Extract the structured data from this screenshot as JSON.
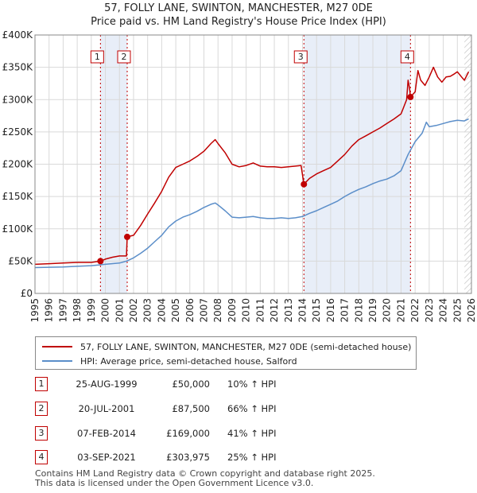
{
  "chart_data": {
    "type": "line",
    "title": "57, FOLLY LANE, SWINTON, MANCHESTER, M27 0DE",
    "subtitle": "Price paid vs. HM Land Registry's House Price Index (HPI)",
    "xlim": [
      1995,
      2026
    ],
    "ylim": [
      0,
      400000
    ],
    "y_ticks": [
      0,
      50000,
      100000,
      150000,
      200000,
      250000,
      300000,
      350000,
      400000
    ],
    "y_tick_labels": [
      "£0",
      "£50K",
      "£100K",
      "£150K",
      "£200K",
      "£250K",
      "£300K",
      "£350K",
      "£400K"
    ],
    "x_ticks": [
      1995,
      1996,
      1997,
      1998,
      1999,
      2000,
      2001,
      2002,
      2003,
      2004,
      2005,
      2006,
      2007,
      2008,
      2009,
      2010,
      2011,
      2012,
      2013,
      2014,
      2015,
      2016,
      2017,
      2018,
      2019,
      2020,
      2021,
      2022,
      2023,
      2024,
      2025,
      2026
    ],
    "x_tick_labels": [
      "1995",
      "1996",
      "1997",
      "1998",
      "1999",
      "2000",
      "2001",
      "2002",
      "2003",
      "2004",
      "2005",
      "2006",
      "2007",
      "2008",
      "2009",
      "2010",
      "2011",
      "2012",
      "2013",
      "2014",
      "2015",
      "2016",
      "2017",
      "2018",
      "2019",
      "2020",
      "2021",
      "2022",
      "2023",
      "2024",
      "2025",
      "2026"
    ],
    "grid": true,
    "series": [
      {
        "name": "57, FOLLY LANE, SWINTON, MANCHESTER, M27 0DE (semi-detached house)",
        "color": "#c00000",
        "points": [
          [
            1995.0,
            45000
          ],
          [
            1996.0,
            46000
          ],
          [
            1997.0,
            47000
          ],
          [
            1998.0,
            48000
          ],
          [
            1999.0,
            48000
          ],
          [
            1999.65,
            50000
          ],
          [
            2000.0,
            53000
          ],
          [
            2000.5,
            56000
          ],
          [
            2001.0,
            58000
          ],
          [
            2001.5,
            58000
          ],
          [
            2001.55,
            87500
          ],
          [
            2002.0,
            90000
          ],
          [
            2002.5,
            105000
          ],
          [
            2003.0,
            123000
          ],
          [
            2003.5,
            140000
          ],
          [
            2004.0,
            158000
          ],
          [
            2004.5,
            180000
          ],
          [
            2005.0,
            195000
          ],
          [
            2005.5,
            200000
          ],
          [
            2006.0,
            205000
          ],
          [
            2006.5,
            212000
          ],
          [
            2007.0,
            220000
          ],
          [
            2007.5,
            232000
          ],
          [
            2007.8,
            238000
          ],
          [
            2008.0,
            232000
          ],
          [
            2008.5,
            218000
          ],
          [
            2009.0,
            200000
          ],
          [
            2009.5,
            196000
          ],
          [
            2010.0,
            198000
          ],
          [
            2010.5,
            202000
          ],
          [
            2011.0,
            197000
          ],
          [
            2011.5,
            196000
          ],
          [
            2012.0,
            196000
          ],
          [
            2012.5,
            195000
          ],
          [
            2013.0,
            196000
          ],
          [
            2013.5,
            197000
          ],
          [
            2013.9,
            198000
          ],
          [
            2014.1,
            169000
          ],
          [
            2014.5,
            178000
          ],
          [
            2015.0,
            185000
          ],
          [
            2015.5,
            190000
          ],
          [
            2016.0,
            195000
          ],
          [
            2016.5,
            205000
          ],
          [
            2017.0,
            215000
          ],
          [
            2017.5,
            228000
          ],
          [
            2018.0,
            238000
          ],
          [
            2018.5,
            244000
          ],
          [
            2019.0,
            250000
          ],
          [
            2019.5,
            256000
          ],
          [
            2020.0,
            263000
          ],
          [
            2020.5,
            270000
          ],
          [
            2021.0,
            278000
          ],
          [
            2021.4,
            300000
          ],
          [
            2021.5,
            330000
          ],
          [
            2021.6,
            318000
          ],
          [
            2021.67,
            303975
          ],
          [
            2022.0,
            312000
          ],
          [
            2022.2,
            345000
          ],
          [
            2022.4,
            330000
          ],
          [
            2022.7,
            322000
          ],
          [
            2023.0,
            335000
          ],
          [
            2023.3,
            350000
          ],
          [
            2023.6,
            335000
          ],
          [
            2023.9,
            327000
          ],
          [
            2024.2,
            335000
          ],
          [
            2024.5,
            336000
          ],
          [
            2024.8,
            340000
          ],
          [
            2025.0,
            343000
          ],
          [
            2025.3,
            335000
          ],
          [
            2025.5,
            330000
          ],
          [
            2025.8,
            343000
          ]
        ],
        "markers": [
          [
            1999.65,
            50000
          ],
          [
            2001.55,
            87500
          ],
          [
            2014.1,
            169000
          ],
          [
            2021.67,
            303975
          ]
        ]
      },
      {
        "name": "HPI: Average price, semi-detached house, Salford",
        "color": "#5b8ec9",
        "points": [
          [
            1995.0,
            40000
          ],
          [
            1996.0,
            40500
          ],
          [
            1997.0,
            41000
          ],
          [
            1998.0,
            42000
          ],
          [
            1999.0,
            43000
          ],
          [
            2000.0,
            45000
          ],
          [
            2001.0,
            47000
          ],
          [
            2001.5,
            50000
          ],
          [
            2002.0,
            55000
          ],
          [
            2002.5,
            62000
          ],
          [
            2003.0,
            70000
          ],
          [
            2003.5,
            80000
          ],
          [
            2004.0,
            90000
          ],
          [
            2004.5,
            103000
          ],
          [
            2005.0,
            112000
          ],
          [
            2005.5,
            118000
          ],
          [
            2006.0,
            122000
          ],
          [
            2006.5,
            127000
          ],
          [
            2007.0,
            133000
          ],
          [
            2007.5,
            138000
          ],
          [
            2007.8,
            140000
          ],
          [
            2008.0,
            137000
          ],
          [
            2008.5,
            128000
          ],
          [
            2009.0,
            118000
          ],
          [
            2009.5,
            117000
          ],
          [
            2010.0,
            118000
          ],
          [
            2010.5,
            119000
          ],
          [
            2011.0,
            117000
          ],
          [
            2011.5,
            116000
          ],
          [
            2012.0,
            116000
          ],
          [
            2012.5,
            117000
          ],
          [
            2013.0,
            116000
          ],
          [
            2013.5,
            117000
          ],
          [
            2014.0,
            119000
          ],
          [
            2014.5,
            124000
          ],
          [
            2015.0,
            128000
          ],
          [
            2015.5,
            133000
          ],
          [
            2016.0,
            138000
          ],
          [
            2016.5,
            143000
          ],
          [
            2017.0,
            150000
          ],
          [
            2017.5,
            156000
          ],
          [
            2018.0,
            161000
          ],
          [
            2018.5,
            165000
          ],
          [
            2019.0,
            170000
          ],
          [
            2019.5,
            174000
          ],
          [
            2020.0,
            177000
          ],
          [
            2020.5,
            182000
          ],
          [
            2021.0,
            190000
          ],
          [
            2021.5,
            215000
          ],
          [
            2022.0,
            235000
          ],
          [
            2022.5,
            248000
          ],
          [
            2022.8,
            265000
          ],
          [
            2023.0,
            258000
          ],
          [
            2023.5,
            260000
          ],
          [
            2024.0,
            263000
          ],
          [
            2024.5,
            266000
          ],
          [
            2025.0,
            268000
          ],
          [
            2025.5,
            267000
          ],
          [
            2025.8,
            270000
          ]
        ]
      }
    ],
    "sale_markers": [
      {
        "label": "1",
        "x": 1999.65
      },
      {
        "label": "2",
        "x": 2001.55
      },
      {
        "label": "3",
        "x": 2014.1
      },
      {
        "label": "4",
        "x": 2021.67
      }
    ],
    "shaded_ranges": [
      [
        1999.65,
        2001.55
      ],
      [
        2014.1,
        2021.67
      ]
    ],
    "forecast_start": 2025.5
  },
  "legend": {
    "property_label": "57, FOLLY LANE, SWINTON, MANCHESTER, M27 0DE (semi-detached house)",
    "hpi_label": "HPI: Average price, semi-detached house, Salford",
    "property_color": "#c00000",
    "hpi_color": "#5b8ec9"
  },
  "transactions": [
    {
      "num": "1",
      "date": "25-AUG-1999",
      "price": "£50,000",
      "hpi": "10% ↑ HPI"
    },
    {
      "num": "2",
      "date": "20-JUL-2001",
      "price": "£87,500",
      "hpi": "66% ↑ HPI"
    },
    {
      "num": "3",
      "date": "07-FEB-2014",
      "price": "£169,000",
      "hpi": "41% ↑ HPI"
    },
    {
      "num": "4",
      "date": "03-SEP-2021",
      "price": "£303,975",
      "hpi": "25% ↑ HPI"
    }
  ],
  "footer": {
    "line1": "Contains HM Land Registry data © Crown copyright and database right 2025.",
    "line2": "This data is licensed under the Open Government Licence v3.0."
  }
}
